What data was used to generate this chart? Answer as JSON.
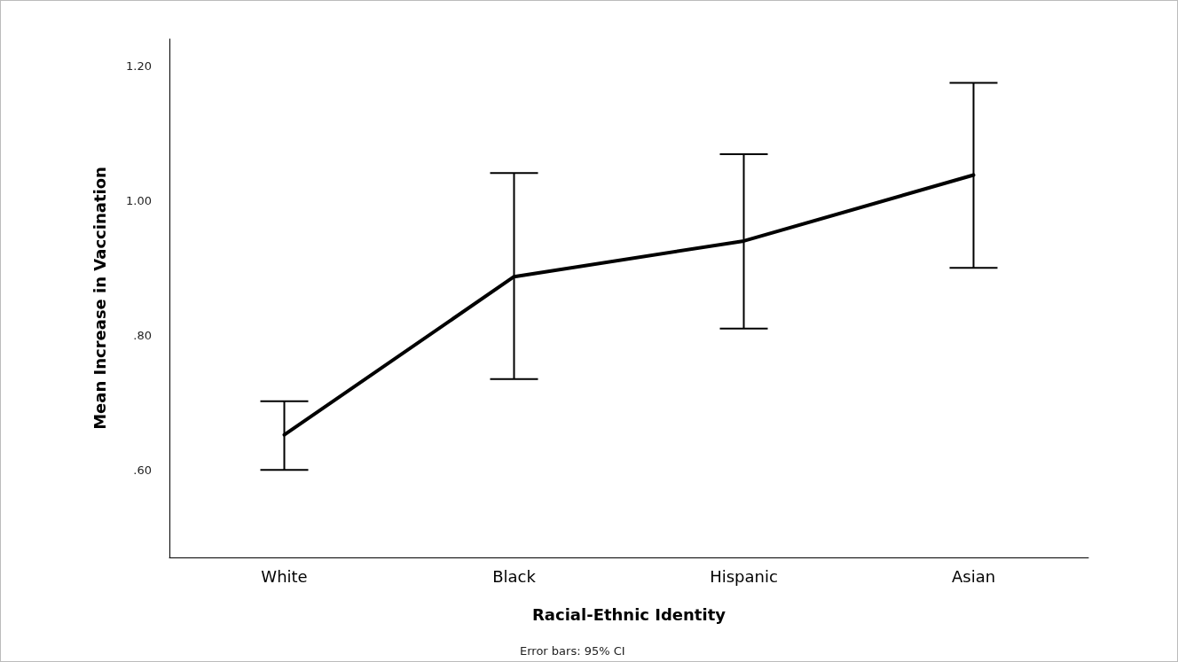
{
  "chart_data": {
    "type": "line",
    "xlabel": "Racial-Ethnic Identity",
    "ylabel": "Mean Increase in Vaccination",
    "categories": [
      "White",
      "Black",
      "Hispanic",
      "Asian"
    ],
    "series": [
      {
        "color": "#000000",
        "values": [
          0.652,
          0.887,
          0.94,
          1.038
        ],
        "errors": [
          [
            0.6,
            0.702
          ],
          [
            0.735,
            1.041
          ],
          [
            0.81,
            1.069
          ],
          [
            0.9,
            1.175
          ]
        ]
      }
    ],
    "ylim": [
      0.47,
      1.24
    ],
    "yticks": [
      {
        "value": 0.6,
        "label": ".60"
      },
      {
        "value": 0.8,
        "label": ".80"
      },
      {
        "value": 1.0,
        "label": "1.00"
      },
      {
        "value": 1.2,
        "label": "1.20"
      }
    ],
    "grid": false,
    "marker": "none",
    "line_style": "solid",
    "annotations": [
      "Error bars: 95% CI"
    ]
  }
}
